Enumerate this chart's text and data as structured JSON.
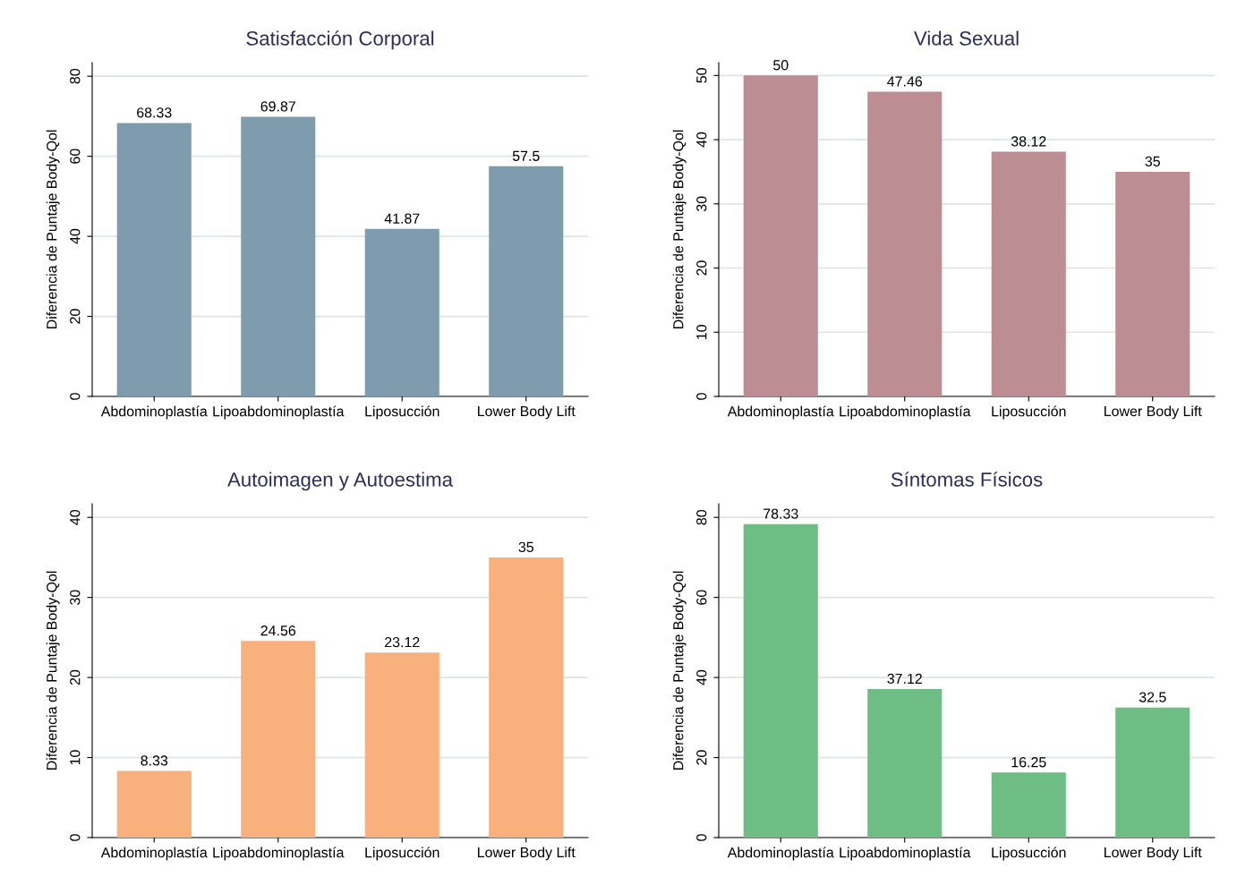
{
  "chart_data": [
    {
      "type": "bar",
      "title": "Satisfacción Corporal",
      "ylabel": "Diferencia de Puntaje Body-Qol",
      "categories": [
        "Abdominoplastía",
        "Lipoabdominoplastía",
        "Liposucción",
        "Lower Body Lift"
      ],
      "values": [
        68.33,
        69.87,
        41.87,
        57.5
      ],
      "color": "#7f9bae",
      "ylim": [
        0,
        83.4
      ],
      "yticks": [
        0,
        20,
        40,
        60,
        80
      ],
      "grid": "y",
      "data_labels": true
    },
    {
      "type": "bar",
      "title": "Vida Sexual",
      "ylabel": "Diferencia de Puntaje Body-Qol",
      "categories": [
        "Abdominoplastía",
        "Lipoabdominoplastía",
        "Liposucción",
        "Lower Body Lift"
      ],
      "values": [
        50,
        47.46,
        38.12,
        35
      ],
      "color": "#bc8e93",
      "ylim": [
        0,
        52
      ],
      "yticks": [
        0,
        10,
        20,
        30,
        40,
        50
      ],
      "grid": "y",
      "data_labels": true
    },
    {
      "type": "bar",
      "title": "Autoimagen y Autoestima",
      "ylabel": "Diferencia de Puntaje Body-Qol",
      "categories": [
        "Abdominoplastía",
        "Lipoabdominoplastía",
        "Liposucción",
        "Lower Body Lift"
      ],
      "values": [
        8.33,
        24.56,
        23.12,
        35
      ],
      "color": "#f8b07c",
      "ylim": [
        0,
        41.7
      ],
      "yticks": [
        0,
        10,
        20,
        30,
        40
      ],
      "grid": "y",
      "data_labels": true
    },
    {
      "type": "bar",
      "title": "Síntomas Físicos",
      "ylabel": "Diferencia de Puntaje Body-Qol",
      "categories": [
        "Abdominoplastía",
        "Lipoabdominoplastía",
        "Liposucción",
        "Lower Body Lift"
      ],
      "values": [
        78.33,
        37.12,
        16.25,
        32.5
      ],
      "color": "#6dbd84",
      "ylim": [
        0,
        83.4
      ],
      "yticks": [
        0,
        20,
        40,
        60,
        80
      ],
      "grid": "y",
      "data_labels": true
    }
  ]
}
